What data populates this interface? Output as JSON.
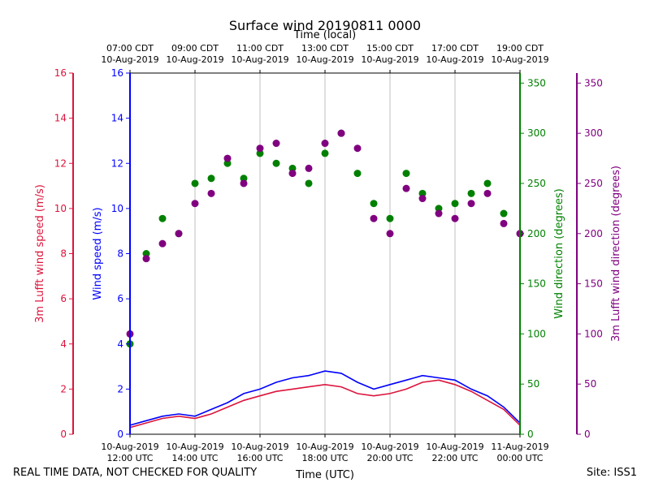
{
  "chart_data": {
    "type": "line+scatter",
    "title": "Surface wind 20190811 0000",
    "top_axis_label": "Time (local)",
    "bottom_axis_label": "Time (UTC)",
    "x_range_utc_hours": [
      12,
      24
    ],
    "bottom_ticks": [
      {
        "hour": 12,
        "date": "10-Aug-2019",
        "time": "12:00 UTC"
      },
      {
        "hour": 14,
        "date": "10-Aug-2019",
        "time": "14:00 UTC"
      },
      {
        "hour": 16,
        "date": "10-Aug-2019",
        "time": "16:00 UTC"
      },
      {
        "hour": 18,
        "date": "10-Aug-2019",
        "time": "18:00 UTC"
      },
      {
        "hour": 20,
        "date": "10-Aug-2019",
        "time": "20:00 UTC"
      },
      {
        "hour": 22,
        "date": "10-Aug-2019",
        "time": "22:00 UTC"
      },
      {
        "hour": 24,
        "date": "11-Aug-2019",
        "time": "00:00 UTC"
      }
    ],
    "top_ticks": [
      {
        "hour": 12,
        "time": "07:00 CDT",
        "date": "10-Aug-2019"
      },
      {
        "hour": 14,
        "time": "09:00 CDT",
        "date": "10-Aug-2019"
      },
      {
        "hour": 16,
        "time": "11:00 CDT",
        "date": "10-Aug-2019"
      },
      {
        "hour": 18,
        "time": "13:00 CDT",
        "date": "10-Aug-2019"
      },
      {
        "hour": 20,
        "time": "15:00 CDT",
        "date": "10-Aug-2019"
      },
      {
        "hour": 22,
        "time": "17:00 CDT",
        "date": "10-Aug-2019"
      },
      {
        "hour": 24,
        "time": "19:00 CDT",
        "date": "10-Aug-2019"
      }
    ],
    "axes": {
      "lufft_speed": {
        "label": "3m Lufft wind speed (m/s)",
        "range": [
          0,
          16
        ],
        "ticks": [
          0,
          2,
          4,
          6,
          8,
          10,
          12,
          14,
          16
        ],
        "color": "#dc143c"
      },
      "wind_speed": {
        "label": "Wind speed (m/s)",
        "range": [
          0,
          16
        ],
        "ticks": [
          0,
          2,
          4,
          6,
          8,
          10,
          12,
          14,
          16
        ],
        "color": "#0000ff"
      },
      "wind_direction": {
        "label": "Wind direction (degrees)",
        "range": [
          0,
          360
        ],
        "ticks": [
          0,
          50,
          100,
          150,
          200,
          250,
          300,
          350
        ],
        "color": "#008000"
      },
      "lufft_direction": {
        "label": "3m Lufft wind direction (degrees)",
        "range": [
          0,
          360
        ],
        "ticks": [
          0,
          50,
          100,
          150,
          200,
          250,
          300,
          350
        ],
        "color": "#800080"
      }
    },
    "series": [
      {
        "name": "Wind speed",
        "type": "line",
        "axis": "wind_speed",
        "color": "#0000ff",
        "x": [
          12.0,
          12.5,
          13.0,
          13.5,
          14.0,
          14.5,
          15.0,
          15.5,
          16.0,
          16.5,
          17.0,
          17.5,
          18.0,
          18.5,
          19.0,
          19.5,
          20.0,
          20.5,
          21.0,
          21.5,
          22.0,
          22.5,
          23.0,
          23.5,
          24.0
        ],
        "values": [
          0.4,
          0.6,
          0.8,
          0.9,
          0.8,
          1.1,
          1.4,
          1.8,
          2.0,
          2.3,
          2.5,
          2.6,
          2.8,
          2.7,
          2.3,
          2.0,
          2.2,
          2.4,
          2.6,
          2.5,
          2.4,
          2.0,
          1.7,
          1.2,
          0.5
        ]
      },
      {
        "name": "3m Lufft wind speed",
        "type": "line",
        "axis": "lufft_speed",
        "color": "#dc143c",
        "x": [
          12.0,
          12.5,
          13.0,
          13.5,
          14.0,
          14.5,
          15.0,
          15.5,
          16.0,
          16.5,
          17.0,
          17.5,
          18.0,
          18.5,
          19.0,
          19.5,
          20.0,
          20.5,
          21.0,
          21.5,
          22.0,
          22.5,
          23.0,
          23.5,
          24.0
        ],
        "values": [
          0.3,
          0.5,
          0.7,
          0.8,
          0.7,
          0.9,
          1.2,
          1.5,
          1.7,
          1.9,
          2.0,
          2.1,
          2.2,
          2.1,
          1.8,
          1.7,
          1.8,
          2.0,
          2.3,
          2.4,
          2.2,
          1.9,
          1.5,
          1.1,
          0.4
        ]
      },
      {
        "name": "Wind direction",
        "type": "scatter",
        "axis": "wind_direction",
        "color": "#008000",
        "x": [
          12.0,
          12.5,
          13.0,
          13.5,
          14.0,
          14.5,
          15.0,
          15.5,
          16.0,
          16.5,
          17.0,
          17.5,
          18.0,
          18.5,
          19.0,
          19.5,
          20.0,
          20.5,
          21.0,
          21.5,
          22.0,
          22.5,
          23.0,
          23.5,
          24.0
        ],
        "values": [
          90,
          180,
          215,
          200,
          250,
          255,
          270,
          255,
          280,
          270,
          265,
          250,
          280,
          300,
          260,
          230,
          215,
          260,
          240,
          225,
          230,
          240,
          250,
          220,
          200
        ]
      },
      {
        "name": "3m Lufft wind direction",
        "type": "scatter",
        "axis": "lufft_direction",
        "color": "#800080",
        "x": [
          12.0,
          12.5,
          13.0,
          13.5,
          14.0,
          14.5,
          15.0,
          15.5,
          16.0,
          16.5,
          17.0,
          17.5,
          18.0,
          18.5,
          19.0,
          19.5,
          20.0,
          20.5,
          21.0,
          21.5,
          22.0,
          22.5,
          23.0,
          23.5,
          24.0
        ],
        "values": [
          100,
          175,
          190,
          200,
          230,
          240,
          275,
          250,
          285,
          290,
          260,
          265,
          290,
          300,
          285,
          215,
          200,
          245,
          235,
          220,
          215,
          230,
          240,
          210,
          200
        ]
      }
    ],
    "grid": true
  },
  "footer": {
    "left": "REAL TIME DATA, NOT CHECKED FOR QUALITY",
    "right": "Site: ISS1"
  }
}
